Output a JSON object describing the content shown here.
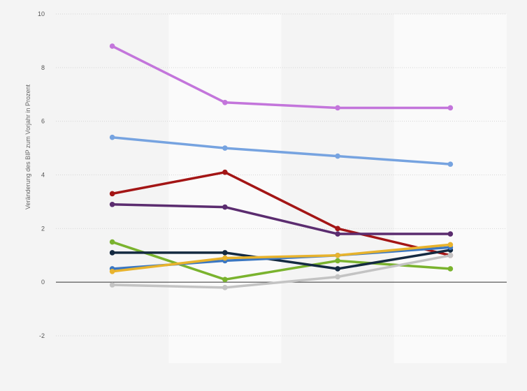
{
  "chart_data": {
    "type": "line",
    "title": "",
    "xlabel": "",
    "ylabel": "Veränderung des BIP zum Vorjahr in Prozent",
    "ylim": [
      -2,
      10
    ],
    "yticks": [
      -2,
      0,
      2,
      4,
      6,
      8,
      10
    ],
    "categories": [
      "",
      "",
      "",
      ""
    ],
    "grid": true,
    "legend": "none",
    "series": [
      {
        "color": "#c375db",
        "values": [
          8.8,
          6.7,
          6.5,
          6.5
        ]
      },
      {
        "color": "#76a3e0",
        "values": [
          5.4,
          5.0,
          4.7,
          4.4
        ]
      },
      {
        "color": "#a31515",
        "values": [
          3.3,
          4.1,
          2.0,
          1.0
        ]
      },
      {
        "color": "#5b2c6f",
        "values": [
          2.9,
          2.8,
          1.8,
          1.8
        ]
      },
      {
        "color": "#7ab32e",
        "values": [
          1.5,
          0.1,
          0.8,
          0.5
        ]
      },
      {
        "color": "#142a41",
        "values": [
          1.1,
          1.1,
          0.5,
          1.2
        ]
      },
      {
        "color": "#3b77c2",
        "values": [
          0.5,
          0.8,
          1.0,
          1.3
        ]
      },
      {
        "color": "#e8b32d",
        "values": [
          0.4,
          0.9,
          1.0,
          1.4
        ]
      },
      {
        "color": "#c3c3c3",
        "values": [
          -0.1,
          -0.2,
          0.2,
          1.0
        ]
      }
    ]
  }
}
